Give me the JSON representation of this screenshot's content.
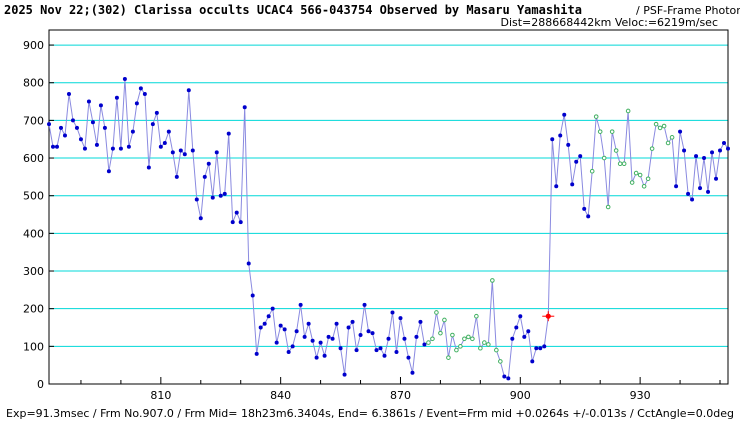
{
  "header": {
    "title": "2025 Nov 22;(302) Clarissa occults UCAC4 566-043754 Observed by Masaru Yamashita",
    "method": "/ PSF-Frame Photometry /",
    "dist_veloc": "Dist=288668442km Veloc:=6219m/sec"
  },
  "footer": {
    "text": "Exp=91.3msec / Frm No.907.0 / Frm Mid= 18h23m6.3404s,  End= 6.3861s / Event=Frm mid +0.0264s +/-0.013s / CctAngle=0.0deg"
  },
  "colors": {
    "grid": "#00d8d8",
    "line": "#8a8ae0",
    "point_blue": "#0000cc",
    "point_green": "#40b060",
    "event": "#ff0000"
  },
  "chart_data": {
    "type": "line",
    "xlim": [
      782,
      952
    ],
    "ylim": [
      0,
      940
    ],
    "x_ticks": [
      810,
      840,
      870,
      900,
      930
    ],
    "y_ticks": [
      0,
      100,
      200,
      300,
      400,
      500,
      600,
      700,
      800,
      900
    ],
    "grid": true,
    "event_marker": {
      "x": 907,
      "y": 180
    },
    "series": [
      {
        "marker": "blue-filled",
        "x": [
          782,
          783,
          784,
          785,
          786,
          787,
          788,
          789,
          790,
          791,
          792,
          793,
          794,
          795,
          796,
          797,
          798,
          799,
          800,
          801,
          802,
          803,
          804,
          805,
          806,
          807,
          808,
          809,
          810,
          811,
          812,
          813,
          814,
          815,
          816,
          817,
          818,
          819,
          820,
          821,
          822,
          823,
          824,
          825,
          826,
          827,
          828,
          829,
          830,
          831,
          832,
          833,
          834,
          835,
          836,
          837,
          838,
          839,
          840,
          841,
          842,
          843,
          844,
          845,
          846,
          847,
          848,
          849,
          850,
          851,
          852,
          853,
          854,
          855,
          856,
          857,
          858,
          859,
          860,
          861,
          862,
          863,
          864,
          865,
          866,
          867,
          868,
          869,
          870,
          871,
          872,
          873,
          874,
          875,
          876
        ],
        "values": [
          690,
          630,
          630,
          680,
          660,
          770,
          700,
          680,
          650,
          625,
          750,
          695,
          635,
          740,
          680,
          565,
          625,
          760,
          625,
          810,
          630,
          670,
          745,
          785,
          770,
          575,
          690,
          720,
          630,
          640,
          670,
          615,
          550,
          620,
          610,
          780,
          620,
          490,
          440,
          550,
          585,
          495,
          615,
          500,
          505,
          665,
          430,
          455,
          430,
          735,
          320,
          235,
          80,
          150,
          160,
          180,
          200,
          110,
          155,
          145,
          85,
          100,
          140,
          210,
          125,
          160,
          115,
          70,
          110,
          75,
          125,
          120,
          160,
          95,
          25,
          150,
          165,
          90,
          130,
          210,
          140,
          135,
          90,
          95,
          75,
          120,
          190,
          85,
          175,
          120,
          70,
          30,
          125,
          165,
          105
        ]
      },
      {
        "marker": "green-open",
        "x": [
          877,
          878,
          879,
          880,
          881,
          882,
          883,
          884,
          885,
          886,
          887,
          888,
          889,
          890,
          891,
          892,
          893,
          894,
          895
        ],
        "values": [
          110,
          120,
          190,
          135,
          170,
          70,
          130,
          90,
          100,
          120,
          125,
          120,
          180,
          95,
          110,
          105,
          275,
          90,
          60
        ]
      },
      {
        "marker": "blue-filled",
        "x": [
          896,
          897,
          898,
          899,
          900,
          901,
          902,
          903,
          904,
          905,
          906
        ],
        "values": [
          20,
          15,
          120,
          150,
          180,
          125,
          140,
          60,
          95,
          95,
          100
        ]
      },
      {
        "marker": "blue-filled",
        "x": [
          908,
          909,
          910,
          911,
          912,
          913,
          914,
          915,
          916,
          917
        ],
        "values": [
          650,
          525,
          660,
          715,
          635,
          530,
          590,
          605,
          465,
          445
        ]
      },
      {
        "marker": "green-open",
        "x": [
          918,
          919,
          920,
          921,
          922,
          923,
          924,
          925,
          926,
          927,
          928,
          929,
          930,
          931,
          932,
          933,
          934,
          935,
          936,
          937,
          938
        ],
        "values": [
          565,
          710,
          670,
          600,
          470,
          670,
          620,
          585,
          585,
          725,
          535,
          560,
          555,
          525,
          545,
          625,
          690,
          680,
          685,
          640,
          655
        ]
      },
      {
        "marker": "blue-filled",
        "x": [
          939,
          940,
          941,
          942,
          943,
          944,
          945,
          946,
          947,
          948,
          949,
          950,
          951,
          952
        ],
        "values": [
          525,
          670,
          620,
          505,
          490,
          605,
          520,
          600,
          510,
          615,
          545,
          620,
          640,
          625
        ]
      }
    ]
  }
}
